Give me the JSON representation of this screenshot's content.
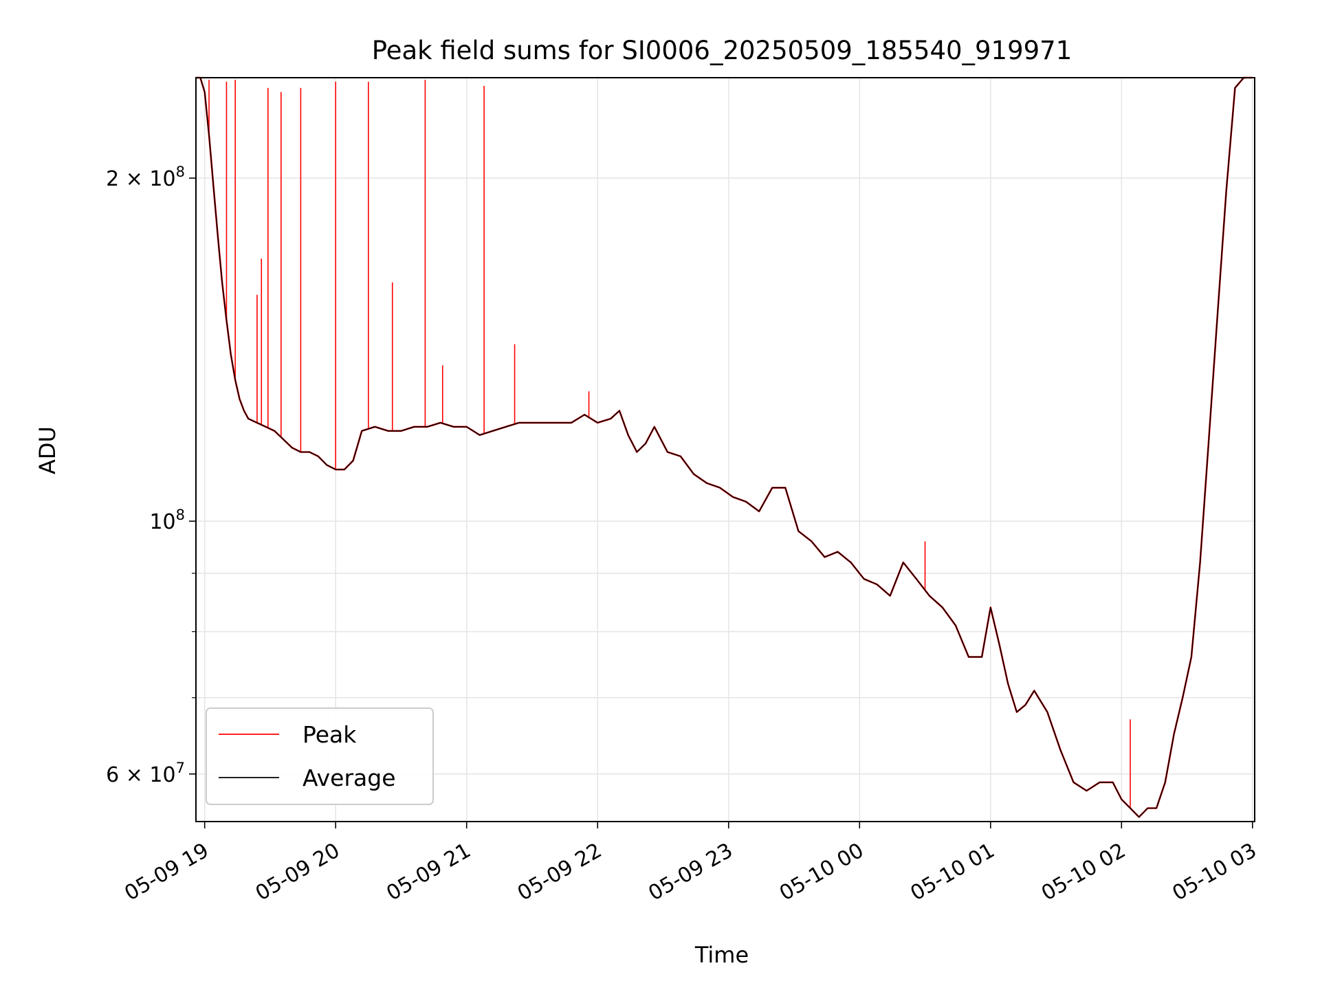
{
  "chart_data": {
    "type": "line",
    "title": "Peak field sums for SI0006_20250509_185540_919971",
    "xlabel": "Time",
    "ylabel": "ADU",
    "y_scale": "log",
    "ylim": [
      54500000,
      245000000
    ],
    "xlim": [
      "05-09 18:56",
      "05-10 03:01"
    ],
    "grid": true,
    "legend_position": "lower-left",
    "x_ticks": [
      "05-09 19",
      "05-09 20",
      "05-09 21",
      "05-09 22",
      "05-09 23",
      "05-10 00",
      "05-10 01",
      "05-10 02",
      "05-10 03"
    ],
    "y_ticks_major": [
      {
        "value": 60000000,
        "label": "6 × 10^7"
      },
      {
        "value": 100000000,
        "label": "10^8"
      },
      {
        "value": 200000000,
        "label": "2 × 10^8"
      }
    ],
    "y_ticks_minor": [
      70000000,
      80000000,
      90000000
    ],
    "colors": {
      "peak": "#ff0000",
      "average": "#000000"
    },
    "series": [
      {
        "name": "Average",
        "x": [
          "05-09 18:56",
          "05-09 18:58",
          "05-09 19:00",
          "05-09 19:02",
          "05-09 19:04",
          "05-09 19:06",
          "05-09 19:08",
          "05-09 19:10",
          "05-09 19:12",
          "05-09 19:14",
          "05-09 19:16",
          "05-09 19:18",
          "05-09 19:20",
          "05-09 19:24",
          "05-09 19:28",
          "05-09 19:32",
          "05-09 19:36",
          "05-09 19:40",
          "05-09 19:44",
          "05-09 19:48",
          "05-09 19:52",
          "05-09 19:56",
          "05-09 20:00",
          "05-09 20:04",
          "05-09 20:08",
          "05-09 20:12",
          "05-09 20:18",
          "05-09 20:24",
          "05-09 20:30",
          "05-09 20:36",
          "05-09 20:42",
          "05-09 20:48",
          "05-09 20:54",
          "05-09 21:00",
          "05-09 21:06",
          "05-09 21:12",
          "05-09 21:18",
          "05-09 21:24",
          "05-09 21:30",
          "05-09 21:36",
          "05-09 21:42",
          "05-09 21:48",
          "05-09 21:54",
          "05-09 22:00",
          "05-09 22:06",
          "05-09 22:10",
          "05-09 22:14",
          "05-09 22:18",
          "05-09 22:22",
          "05-09 22:26",
          "05-09 22:32",
          "05-09 22:38",
          "05-09 22:44",
          "05-09 22:50",
          "05-09 22:56",
          "05-09 23:02",
          "05-09 23:08",
          "05-09 23:14",
          "05-09 23:20",
          "05-09 23:26",
          "05-09 23:32",
          "05-09 23:38",
          "05-09 23:44",
          "05-09 23:50",
          "05-09 23:56",
          "05-10 00:02",
          "05-10 00:08",
          "05-10 00:14",
          "05-10 00:20",
          "05-10 00:26",
          "05-10 00:32",
          "05-10 00:38",
          "05-10 00:44",
          "05-10 00:50",
          "05-10 00:56",
          "05-10 01:00",
          "05-10 01:04",
          "05-10 01:08",
          "05-10 01:12",
          "05-10 01:16",
          "05-10 01:20",
          "05-10 01:26",
          "05-10 01:32",
          "05-10 01:38",
          "05-10 01:44",
          "05-10 01:50",
          "05-10 01:56",
          "05-10 02:00",
          "05-10 02:04",
          "05-10 02:08",
          "05-10 02:12",
          "05-10 02:16",
          "05-10 02:20",
          "05-10 02:24",
          "05-10 02:28",
          "05-10 02:32",
          "05-10 02:36",
          "05-10 02:40",
          "05-10 02:44",
          "05-10 02:48",
          "05-10 02:52",
          "05-10 02:56",
          "05-10 03:00"
        ],
        "y": [
          245000000,
          245000000,
          238000000,
          218000000,
          197000000,
          178000000,
          162000000,
          150000000,
          140000000,
          133000000,
          128000000,
          125000000,
          123000000,
          122000000,
          121000000,
          120000000,
          118000000,
          116000000,
          115000000,
          115000000,
          114000000,
          112000000,
          111000000,
          111000000,
          113000000,
          120000000,
          121000000,
          120000000,
          120000000,
          121000000,
          121000000,
          122000000,
          121000000,
          121000000,
          119000000,
          120000000,
          121000000,
          122000000,
          122000000,
          122000000,
          122000000,
          122000000,
          124000000,
          122000000,
          123000000,
          125000000,
          119000000,
          115000000,
          117000000,
          121000000,
          115000000,
          114000000,
          110000000,
          108000000,
          107000000,
          105000000,
          104000000,
          102000000,
          107000000,
          107000000,
          98000000,
          96000000,
          93000000,
          94000000,
          92000000,
          89000000,
          88000000,
          86000000,
          92000000,
          89000000,
          86000000,
          84000000,
          81000000,
          76000000,
          76000000,
          84000000,
          78000000,
          72000000,
          68000000,
          69000000,
          71000000,
          68000000,
          63000000,
          59000000,
          58000000,
          59000000,
          59000000,
          57000000,
          56000000,
          55000000,
          56000000,
          56000000,
          59000000,
          65000000,
          70000000,
          76000000,
          92000000,
          118000000,
          152000000,
          195000000,
          240000000,
          245000000,
          245000000
        ]
      },
      {
        "name": "Peak",
        "spikes": [
          {
            "x": "05-09 19:02",
            "y": 244000000
          },
          {
            "x": "05-09 19:10",
            "y": 243000000
          },
          {
            "x": "05-09 19:14",
            "y": 244000000
          },
          {
            "x": "05-09 19:24",
            "y": 158000000
          },
          {
            "x": "05-09 19:26",
            "y": 170000000
          },
          {
            "x": "05-09 19:29",
            "y": 240000000
          },
          {
            "x": "05-09 19:35",
            "y": 238000000
          },
          {
            "x": "05-09 19:44",
            "y": 240000000
          },
          {
            "x": "05-09 20:00",
            "y": 243000000
          },
          {
            "x": "05-09 20:15",
            "y": 243000000
          },
          {
            "x": "05-09 20:26",
            "y": 162000000
          },
          {
            "x": "05-09 20:41",
            "y": 244000000
          },
          {
            "x": "05-09 20:49",
            "y": 137000000
          },
          {
            "x": "05-09 21:08",
            "y": 241000000
          },
          {
            "x": "05-09 21:22",
            "y": 143000000
          },
          {
            "x": "05-09 21:56",
            "y": 130000000
          },
          {
            "x": "05-10 00:30",
            "y": 96000000
          },
          {
            "x": "05-10 02:04",
            "y": 67000000
          }
        ]
      }
    ]
  },
  "legend": {
    "entries": [
      {
        "name": "Peak",
        "color": "#ff0000"
      },
      {
        "name": "Average",
        "color": "#000000"
      }
    ]
  }
}
